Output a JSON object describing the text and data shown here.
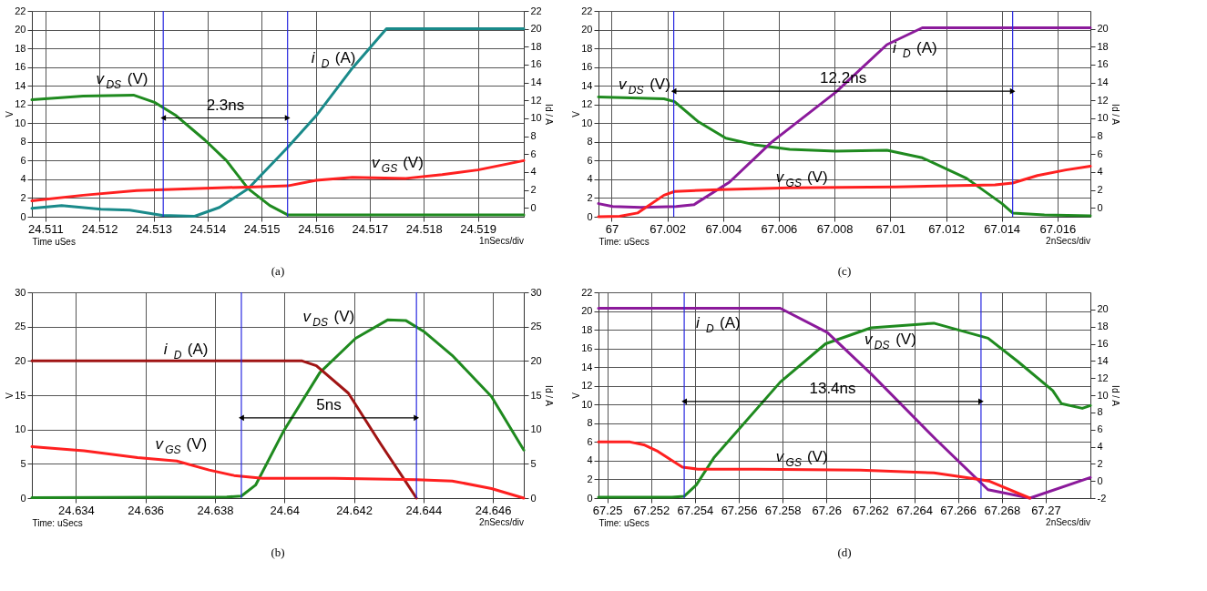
{
  "chart_data": [
    {
      "type": "line",
      "title": "(a)",
      "xlabel": "Time uSes",
      "ylabel": "V",
      "y2label": "Id / A",
      "xlim": [
        24.51075,
        24.51985
      ],
      "xticks": [
        24.511,
        24.512,
        24.513,
        24.514,
        24.515,
        24.516,
        24.517,
        24.518,
        24.519
      ],
      "ylim": [
        0,
        22
      ],
      "yticks": [
        0,
        2,
        4,
        6,
        8,
        10,
        12,
        14,
        16,
        18,
        20,
        22
      ],
      "y2lim": [
        -1,
        22
      ],
      "y2ticks": [
        0,
        2,
        4,
        6,
        8,
        10,
        12,
        14,
        16,
        18,
        20,
        22
      ],
      "grid": true,
      "series": [
        {
          "name": "v$_{DS}$ (V)",
          "color": "#1f8a1f",
          "x": [
            24.51075,
            24.5117,
            24.51263,
            24.51303,
            24.51342,
            24.51395,
            24.51435,
            24.51475,
            24.51515,
            24.51548,
            24.51635,
            24.51985
          ],
          "values": [
            12.5,
            12.9,
            13.0,
            12.2,
            10.8,
            8.2,
            6.0,
            3.0,
            1.2,
            0.2,
            0.2,
            0.2
          ]
        },
        {
          "name": "i$_{D}$ (A)",
          "color": "#1a8a8a",
          "x": [
            24.51075,
            24.5113,
            24.51203,
            24.51256,
            24.51316,
            24.51376,
            24.51422,
            24.51475,
            24.51548,
            24.51601,
            24.51668,
            24.51731,
            24.51985
          ],
          "values": [
            0.9,
            1.2,
            0.8,
            0.7,
            0.15,
            0.05,
            1.0,
            3.0,
            7.4,
            10.8,
            15.9,
            20.1,
            20.1
          ]
        },
        {
          "name": "v$_{GS}$ (V)",
          "color": "#ff2020",
          "x": [
            24.51075,
            24.5117,
            24.51269,
            24.51369,
            24.51488,
            24.51548,
            24.51601,
            24.51668,
            24.51767,
            24.51834,
            24.519,
            24.51985
          ],
          "values": [
            1.7,
            2.3,
            2.8,
            3.0,
            3.2,
            3.3,
            3.9,
            4.2,
            4.1,
            4.5,
            5.0,
            6.0
          ]
        }
      ],
      "ref_lines": [
        {
          "axis": "x",
          "value": 24.51318,
          "color": "#2828e0"
        },
        {
          "axis": "x",
          "value": 24.51548,
          "color": "#2828e0"
        }
      ],
      "annotations": [
        "2.3ns",
        "1nSecs/div"
      ]
    },
    {
      "type": "line",
      "title": "(c)",
      "xlabel": "Time: uSecs",
      "ylabel": "V",
      "y2label": "Id / A",
      "xlim": [
        66.99953,
        67.01718
      ],
      "xticks": [
        67,
        67.002,
        67.004,
        67.006,
        67.008,
        67.01,
        67.012,
        67.014,
        67.016
      ],
      "ylim": [
        0,
        22
      ],
      "yticks": [
        0,
        2,
        4,
        6,
        8,
        10,
        12,
        14,
        16,
        18,
        20,
        22
      ],
      "y2lim": [
        -1,
        22
      ],
      "y2ticks": [
        0,
        2,
        4,
        6,
        8,
        10,
        12,
        14,
        16,
        18,
        20
      ],
      "grid": true,
      "series": [
        {
          "name": "v$_{DS}$ (V)",
          "color": "#1f8a1f",
          "x": [
            66.99953,
            67.00188,
            67.00226,
            67.00309,
            67.0041,
            67.00512,
            67.00639,
            67.00804,
            67.00988,
            67.01115,
            67.01274,
            67.01401,
            67.01439,
            67.01553,
            67.01718
          ],
          "values": [
            12.8,
            12.6,
            12.3,
            10.2,
            8.4,
            7.7,
            7.2,
            7.0,
            7.1,
            6.3,
            4.1,
            1.4,
            0.4,
            0.2,
            0.1
          ]
        },
        {
          "name": "i$_{D}$ (A)",
          "color": "#8b1a9b",
          "x": [
            66.99953,
            67.00004,
            67.00105,
            67.00232,
            67.00296,
            67.00423,
            67.00575,
            67.00804,
            67.00988,
            67.01115,
            67.01718
          ],
          "values": [
            1.4,
            1.1,
            1.0,
            1.1,
            1.3,
            3.7,
            8.0,
            13.3,
            18.4,
            20.2,
            20.2
          ]
        },
        {
          "name": "v$_{GS}$ (V)",
          "color": "#ff2020",
          "x": [
            66.99953,
            67.00029,
            67.00093,
            67.00188,
            67.00226,
            67.00385,
            67.00639,
            67.0102,
            67.01376,
            67.01439,
            67.01528,
            67.0163,
            67.01718
          ],
          "values": [
            0,
            0.05,
            0.4,
            2.3,
            2.7,
            2.9,
            3.1,
            3.2,
            3.4,
            3.6,
            4.4,
            5.0,
            5.4
          ]
        }
      ],
      "ref_lines": [
        {
          "axis": "x",
          "value": 67.00223,
          "color": "#2828e0"
        },
        {
          "axis": "x",
          "value": 67.01439,
          "color": "#2828e0"
        }
      ],
      "annotations": [
        "12.2ns",
        "2nSecs/div"
      ]
    },
    {
      "type": "line",
      "title": "(b)",
      "xlabel": "Time: uSecs",
      "ylabel": "V",
      "y2label": "Id / A",
      "xlim": [
        24.63273,
        24.64689
      ],
      "xticks": [
        24.634,
        24.636,
        24.638,
        24.64,
        24.642,
        24.644,
        24.646
      ],
      "ylim": [
        0,
        30
      ],
      "yticks": [
        0,
        5,
        10,
        15,
        20,
        25,
        30
      ],
      "y2lim": [
        0,
        30
      ],
      "y2ticks": [
        0,
        5,
        10,
        15,
        20,
        25,
        30
      ],
      "grid": true,
      "series": [
        {
          "name": "v$_{DS}$ (V)",
          "color": "#1f8a1f",
          "x": [
            24.63273,
            24.63834,
            24.63876,
            24.63917,
            24.63999,
            24.64102,
            24.64205,
            24.64298,
            24.64349,
            24.64401,
            24.64483,
            24.64596,
            24.64689
          ],
          "values": [
            0.05,
            0.15,
            0.3,
            1.9,
            9.9,
            18.3,
            23.3,
            26.0,
            25.9,
            24.3,
            20.8,
            14.8,
            7.0
          ]
        },
        {
          "name": "i$_{D}$ (A)",
          "color": "#a01414",
          "x": [
            24.63273,
            24.64051,
            24.64092,
            24.64184,
            24.64277,
            24.64349,
            24.6438
          ],
          "values": [
            20.0,
            20.0,
            19.3,
            15.3,
            7.9,
            2.4,
            0
          ]
        },
        {
          "name": "v$_{GS}$ (V)",
          "color": "#ff2020",
          "x": [
            24.63273,
            24.63423,
            24.63577,
            24.6369,
            24.63783,
            24.63855,
            24.63937,
            24.64143,
            24.6438,
            24.64483,
            24.64596,
            24.64689
          ],
          "values": [
            7.5,
            6.9,
            5.9,
            5.4,
            4.1,
            3.3,
            2.9,
            2.9,
            2.7,
            2.5,
            1.4,
            0
          ]
        }
      ],
      "ref_lines": [
        {
          "axis": "x",
          "value": 24.63876,
          "color": "#2828e0"
        },
        {
          "axis": "x",
          "value": 24.6438,
          "color": "#2828e0"
        }
      ],
      "annotations": [
        "5ns",
        "2nSecs/div"
      ]
    },
    {
      "type": "line",
      "title": "(d)",
      "xlabel": "Time: uSecs",
      "ylabel": "V",
      "y2label": "Id / A",
      "xlim": [
        67.2496,
        67.27204
      ],
      "xticks": [
        67.25,
        67.252,
        67.254,
        67.256,
        67.258,
        67.26,
        67.262,
        67.264,
        67.266,
        67.268,
        67.27
      ],
      "ylim": [
        0,
        22
      ],
      "yticks": [
        0,
        2,
        4,
        6,
        8,
        10,
        12,
        14,
        16,
        18,
        20,
        22
      ],
      "y2lim": [
        -2,
        22
      ],
      "y2ticks": [
        -2,
        0,
        2,
        4,
        6,
        8,
        10,
        12,
        14,
        16,
        18,
        20
      ],
      "grid": true,
      "series": [
        {
          "name": "v$_{DS}$ (V)",
          "color": "#1f8a1f",
          "x": [
            67.2496,
            67.25295,
            67.25351,
            67.25406,
            67.25486,
            67.25789,
            67.25996,
            67.26203,
            67.2649,
            67.26737,
            67.26873,
            67.27032,
            67.27072,
            67.27167,
            67.27204
          ],
          "values": [
            0.1,
            0.1,
            0.2,
            1.4,
            4.3,
            12.4,
            16.5,
            18.2,
            18.7,
            17.1,
            14.6,
            11.5,
            10.1,
            9.6,
            9.9
          ]
        },
        {
          "name": "i$_{D}$ (A)",
          "color": "#8b1a9b",
          "x": [
            67.2496,
            67.25789,
            67.26004,
            67.26203,
            67.26498,
            67.26737,
            67.26928,
            67.27204
          ],
          "values": [
            20.3,
            20.3,
            17.7,
            13.3,
            6.3,
            0.9,
            0,
            2.2
          ]
        },
        {
          "name": "v$_{GS}$ (V)",
          "color": "#ff2020",
          "x": [
            67.2496,
            67.25104,
            67.25167,
            67.25231,
            67.25343,
            67.25414,
            67.25677,
            67.26155,
            67.2649,
            67.26697,
            67.26745,
            67.26928
          ],
          "values": [
            6.0,
            6.0,
            5.7,
            5.0,
            3.3,
            3.1,
            3.1,
            3.0,
            2.7,
            2.0,
            1.8,
            0
          ]
        }
      ],
      "ref_lines": [
        {
          "axis": "x",
          "value": 67.25351,
          "color": "#2828e0"
        },
        {
          "axis": "x",
          "value": 67.26705,
          "color": "#2828e0"
        }
      ],
      "annotations": [
        "13.4ns",
        "2nSecs/div"
      ]
    }
  ]
}
